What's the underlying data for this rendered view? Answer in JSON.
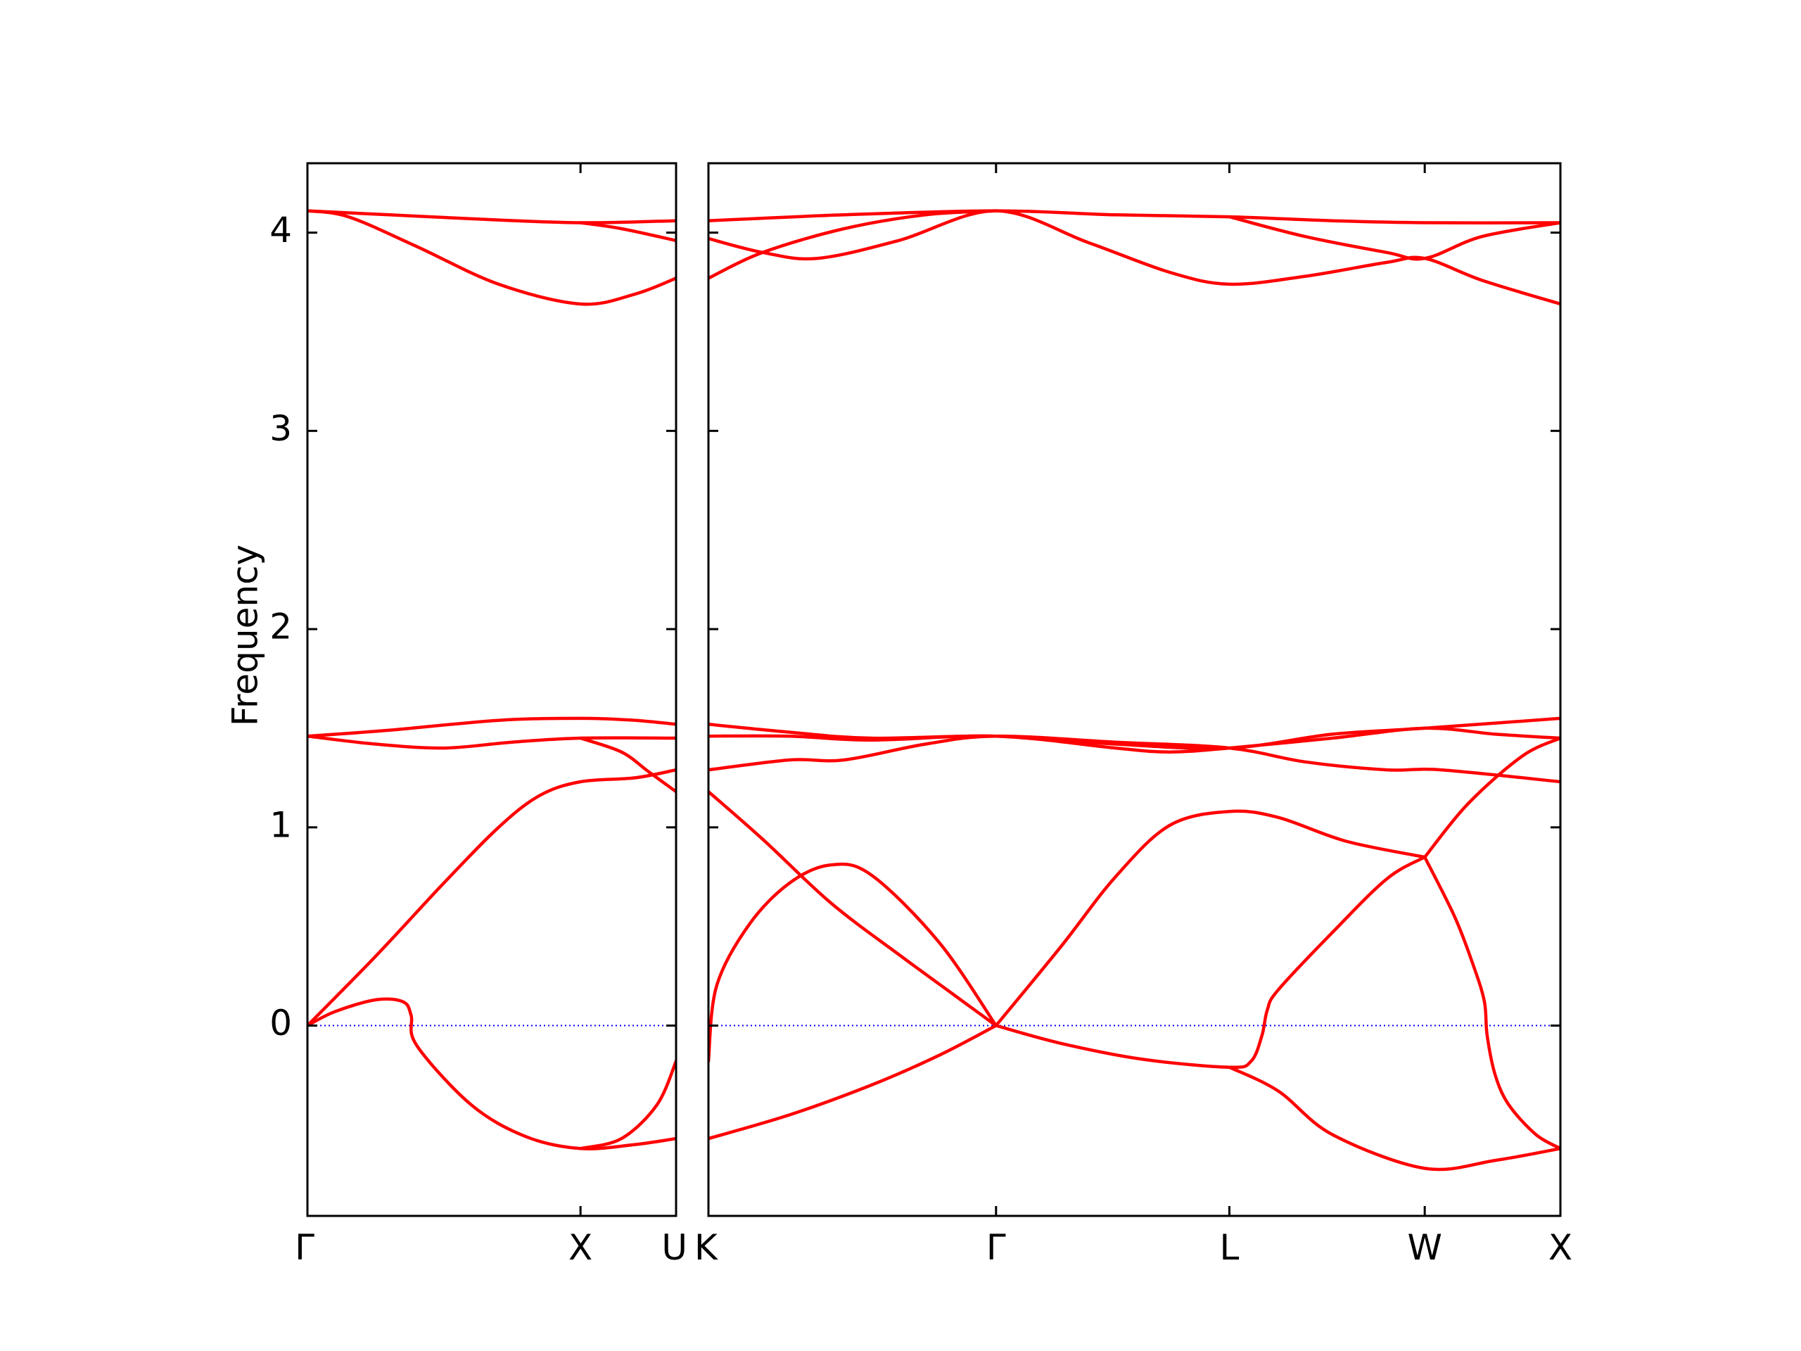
{
  "chart_data": {
    "type": "line",
    "title": "",
    "ylabel": "Frequency",
    "xlabel": "",
    "ylim": [
      -0.96,
      4.35
    ],
    "yticks": [
      0,
      1,
      2,
      3,
      4
    ],
    "grid": false,
    "legend": "none",
    "colors": {
      "band": "#ff0000",
      "zero_line": "#0000ff",
      "frame": "#000000"
    },
    "panels": [
      {
        "name": "Gamma-X-U",
        "x_range": [
          0,
          1.35
        ],
        "xticks": [
          {
            "x": 0,
            "label": "Γ"
          },
          {
            "x": 1.0,
            "label": "X"
          },
          {
            "x": 1.35,
            "label": "U"
          }
        ],
        "series": [
          {
            "points": [
              [
                0,
                4.11
              ],
              [
                0.3,
                4.09
              ],
              [
                0.6,
                4.07
              ],
              [
                1.0,
                4.05
              ],
              [
                1.35,
                4.06
              ]
            ]
          },
          {
            "points": [
              [
                0,
                4.11
              ],
              [
                0.15,
                4.08
              ],
              [
                0.4,
                3.93
              ],
              [
                0.7,
                3.74
              ],
              [
                1.0,
                3.64
              ],
              [
                1.2,
                3.69
              ],
              [
                1.35,
                3.77
              ]
            ]
          },
          {
            "points": [
              [
                1.0,
                4.05
              ],
              [
                1.15,
                4.02
              ],
              [
                1.35,
                3.96
              ]
            ]
          },
          {
            "points": [
              [
                0,
                1.46
              ],
              [
                0.3,
                1.49
              ],
              [
                0.7,
                1.54
              ],
              [
                1.0,
                1.55
              ],
              [
                1.2,
                1.54
              ],
              [
                1.35,
                1.52
              ]
            ]
          },
          {
            "points": [
              [
                0,
                1.46
              ],
              [
                0.25,
                1.42
              ],
              [
                0.5,
                1.4
              ],
              [
                0.75,
                1.43
              ],
              [
                1.0,
                1.45
              ],
              [
                1.35,
                1.45
              ]
            ]
          },
          {
            "points": [
              [
                1.0,
                1.45
              ],
              [
                1.15,
                1.38
              ],
              [
                1.25,
                1.28
              ],
              [
                1.35,
                1.18
              ]
            ]
          },
          {
            "points": [
              [
                0,
                0
              ],
              [
                0.25,
                0.35
              ],
              [
                0.5,
                0.72
              ],
              [
                0.7,
                1.0
              ],
              [
                0.85,
                1.16
              ],
              [
                1.0,
                1.23
              ],
              [
                1.2,
                1.25
              ],
              [
                1.35,
                1.29
              ]
            ]
          },
          {
            "points": [
              [
                0,
                0
              ],
              [
                0.1,
                0.07
              ],
              [
                0.25,
                0.13
              ],
              [
                0.35,
                0.12
              ],
              [
                0.38,
                0.05
              ],
              [
                0.4,
                -0.1
              ],
              [
                0.6,
                -0.4
              ],
              [
                0.8,
                -0.56
              ],
              [
                1.0,
                -0.62
              ],
              [
                1.2,
                -0.6
              ],
              [
                1.35,
                -0.57
              ]
            ]
          },
          {
            "points": [
              [
                1.0,
                -0.62
              ],
              [
                1.15,
                -0.57
              ],
              [
                1.28,
                -0.4
              ],
              [
                1.35,
                -0.18
              ]
            ]
          }
        ]
      },
      {
        "name": "K-Gamma-L-W-X",
        "x_range": [
          0,
          3.14
        ],
        "xticks": [
          {
            "x": 0,
            "label": "K"
          },
          {
            "x": 1.06,
            "label": "Γ"
          },
          {
            "x": 1.92,
            "label": "L"
          },
          {
            "x": 2.64,
            "label": "W"
          },
          {
            "x": 3.14,
            "label": "X"
          }
        ],
        "series": [
          {
            "points": [
              [
                0,
                4.06
              ],
              [
                0.5,
                4.09
              ],
              [
                1.06,
                4.11
              ],
              [
                1.5,
                4.09
              ],
              [
                1.92,
                4.08
              ],
              [
                2.3,
                4.06
              ],
              [
                2.64,
                4.05
              ],
              [
                3.14,
                4.05
              ]
            ]
          },
          {
            "points": [
              [
                0,
                3.97
              ],
              [
                0.2,
                3.9
              ],
              [
                0.4,
                3.87
              ],
              [
                0.7,
                3.96
              ],
              [
                1.06,
                4.11
              ],
              [
                1.4,
                3.95
              ],
              [
                1.7,
                3.8
              ],
              [
                1.92,
                3.74
              ],
              [
                2.2,
                3.78
              ],
              [
                2.5,
                3.85
              ],
              [
                2.64,
                3.87
              ],
              [
                2.85,
                3.76
              ],
              [
                3.14,
                3.64
              ]
            ]
          },
          {
            "points": [
              [
                0,
                3.77
              ],
              [
                0.2,
                3.9
              ],
              [
                0.5,
                4.02
              ],
              [
                0.8,
                4.09
              ],
              [
                1.06,
                4.11
              ]
            ]
          },
          {
            "points": [
              [
                1.92,
                4.08
              ],
              [
                2.2,
                3.98
              ],
              [
                2.5,
                3.9
              ],
              [
                2.64,
                3.87
              ],
              [
                2.85,
                3.98
              ],
              [
                3.14,
                4.05
              ]
            ]
          },
          {
            "points": [
              [
                0,
                1.52
              ],
              [
                0.3,
                1.48
              ],
              [
                0.6,
                1.45
              ],
              [
                1.06,
                1.46
              ],
              [
                1.5,
                1.42
              ],
              [
                1.92,
                1.4
              ],
              [
                2.3,
                1.47
              ],
              [
                2.64,
                1.5
              ],
              [
                3.14,
                1.55
              ]
            ]
          },
          {
            "points": [
              [
                0,
                1.46
              ],
              [
                0.3,
                1.46
              ],
              [
                0.6,
                1.44
              ],
              [
                1.06,
                1.46
              ],
              [
                1.5,
                1.4
              ],
              [
                1.7,
                1.38
              ],
              [
                1.92,
                1.4
              ],
              [
                2.3,
                1.45
              ],
              [
                2.64,
                1.5
              ],
              [
                2.9,
                1.47
              ],
              [
                3.14,
                1.45
              ]
            ]
          },
          {
            "points": [
              [
                0,
                1.29
              ],
              [
                0.3,
                1.34
              ],
              [
                0.5,
                1.34
              ],
              [
                0.8,
                1.42
              ],
              [
                1.06,
                1.46
              ],
              [
                1.5,
                1.43
              ],
              [
                1.92,
                1.4
              ],
              [
                2.2,
                1.33
              ],
              [
                2.5,
                1.29
              ],
              [
                2.7,
                1.29
              ],
              [
                3.14,
                1.23
              ]
            ]
          },
          {
            "points": [
              [
                0,
                1.18
              ],
              [
                0.2,
                0.94
              ],
              [
                0.45,
                0.62
              ],
              [
                0.7,
                0.36
              ],
              [
                0.9,
                0.16
              ],
              [
                1.06,
                0
              ]
            ]
          },
          {
            "points": [
              [
                0,
                -0.18
              ],
              [
                0.03,
                0.2
              ],
              [
                0.15,
                0.51
              ],
              [
                0.3,
                0.72
              ],
              [
                0.45,
                0.81
              ],
              [
                0.6,
                0.76
              ],
              [
                0.85,
                0.42
              ],
              [
                1.06,
                0
              ]
            ]
          },
          {
            "points": [
              [
                1.06,
                0
              ],
              [
                1.3,
                0.4
              ],
              [
                1.5,
                0.75
              ],
              [
                1.7,
                1.01
              ],
              [
                1.92,
                1.08
              ],
              [
                2.1,
                1.05
              ],
              [
                2.35,
                0.93
              ],
              [
                2.64,
                0.85
              ]
            ]
          },
          {
            "points": [
              [
                0,
                -0.57
              ],
              [
                0.3,
                -0.45
              ],
              [
                0.6,
                -0.3
              ],
              [
                0.85,
                -0.15
              ],
              [
                1.06,
                0
              ]
            ]
          },
          {
            "points": [
              [
                1.06,
                0
              ],
              [
                1.3,
                -0.09
              ],
              [
                1.6,
                -0.17
              ],
              [
                1.92,
                -0.21
              ],
              [
                2.0,
                -0.18
              ],
              [
                2.04,
                -0.05
              ],
              [
                2.06,
                0.08
              ],
              [
                2.1,
                0.18
              ],
              [
                2.3,
                0.47
              ],
              [
                2.5,
                0.74
              ],
              [
                2.64,
                0.85
              ]
            ]
          },
          {
            "points": [
              [
                1.92,
                -0.21
              ],
              [
                2.1,
                -0.33
              ],
              [
                2.3,
                -0.55
              ],
              [
                2.64,
                -0.72
              ],
              [
                2.9,
                -0.68
              ],
              [
                3.14,
                -0.62
              ]
            ]
          },
          {
            "points": [
              [
                2.64,
                0.85
              ],
              [
                2.75,
                0.55
              ],
              [
                2.82,
                0.3
              ],
              [
                2.86,
                0.12
              ],
              [
                2.87,
                -0.05
              ],
              [
                2.9,
                -0.25
              ],
              [
                2.95,
                -0.4
              ],
              [
                3.05,
                -0.55
              ],
              [
                3.14,
                -0.62
              ]
            ]
          },
          {
            "points": [
              [
                2.64,
                0.85
              ],
              [
                2.8,
                1.12
              ],
              [
                3.0,
                1.36
              ],
              [
                3.14,
                1.45
              ]
            ]
          }
        ]
      }
    ]
  }
}
